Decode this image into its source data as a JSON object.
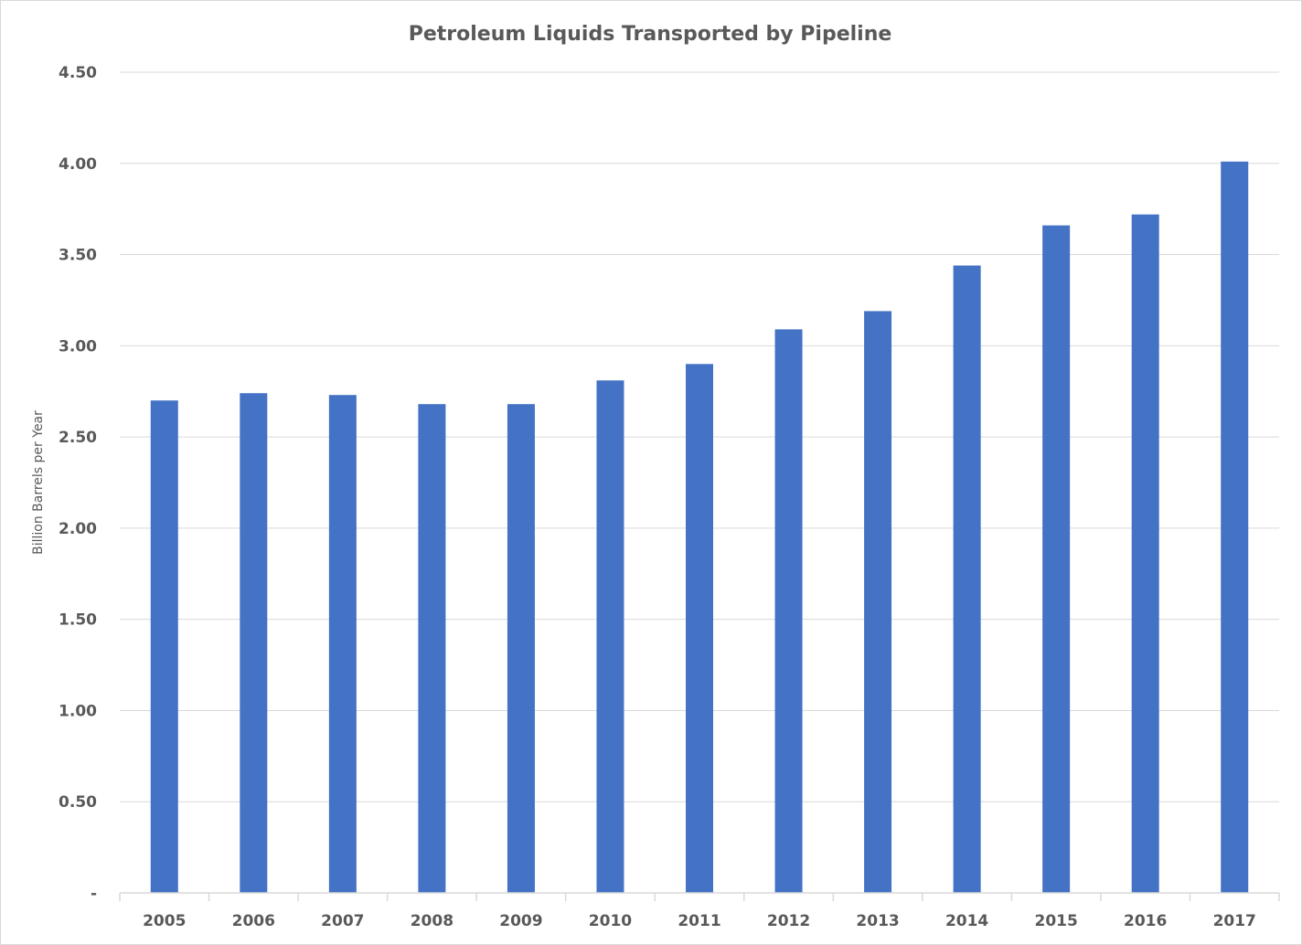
{
  "chart_data": {
    "type": "bar",
    "title": "Petroleum Liquids Transported by Pipeline",
    "xlabel": "",
    "ylabel": "Billion Barrels per Year",
    "categories": [
      "2005",
      "2006",
      "2007",
      "2008",
      "2009",
      "2010",
      "2011",
      "2012",
      "2013",
      "2014",
      "2015",
      "2016",
      "2017"
    ],
    "series": [
      {
        "values": [
          2.7,
          2.74,
          2.73,
          2.68,
          2.68,
          2.81,
          2.9,
          3.09,
          3.19,
          3.44,
          3.66,
          3.72,
          4.01
        ]
      }
    ],
    "ylim": [
      0,
      4.5
    ],
    "yticks": [
      0,
      0.5,
      1.0,
      1.5,
      2.0,
      2.5,
      3.0,
      3.5,
      4.0,
      4.5
    ],
    "ytick_labels": [
      "-",
      "0.50",
      "1.00",
      "1.50",
      "2.00",
      "2.50",
      "3.00",
      "3.50",
      "4.00",
      "4.50"
    ],
    "grid": true,
    "legend": "none",
    "colors": {
      "bar": "#4472c4",
      "grid": "#d9d9d9",
      "text": "#595959"
    }
  }
}
